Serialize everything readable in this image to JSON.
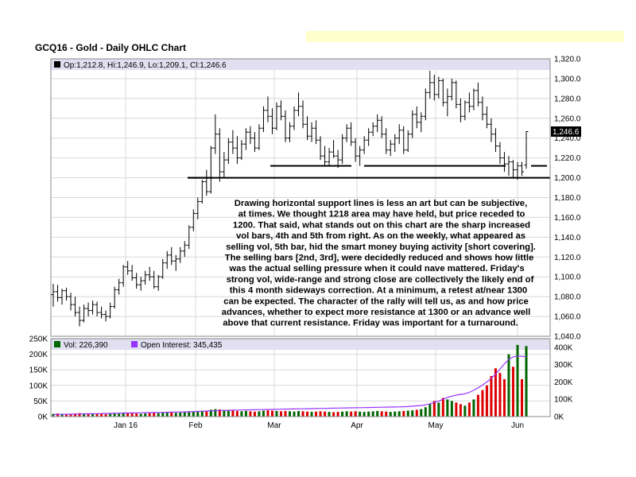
{
  "title": "GCQ16 - Gold - Daily OHLC Chart",
  "price_panel": {
    "legend": "Op:1,212.8, Hi:1,246.9, Lo:1,209.1, Cl:1,246.6",
    "last_price": "1,246.6",
    "y_ticks": [
      "1,320.0",
      "1,300.0",
      "1,280.0",
      "1,260.0",
      "1,240.0",
      "1,220.0",
      "1,200.0",
      "1,180.0",
      "1,160.0",
      "1,140.0",
      "1,120.0",
      "1,100.0",
      "1,080.0",
      "1,060.0",
      "1,040.0"
    ]
  },
  "volume_panel": {
    "vol_legend": "Vol: 226,390",
    "oi_legend": "Open Interest: 345,435",
    "left_ticks": [
      "250K",
      "200K",
      "150K",
      "100K",
      "50K",
      "0K"
    ],
    "right_ticks": [
      "400K",
      "300K",
      "200K",
      "100K",
      "0K"
    ]
  },
  "x_ticks": [
    "Jan 16",
    "Feb",
    "Mar",
    "Apr",
    "May",
    "Jun"
  ],
  "annotation_lines": [
    "Drawing horizontal support lines is less an art but can be subjective,",
    "at times.  We thought 1218 area may have held, but price receded to",
    "1200.  That said, what stands out on this chart are the sharp increased",
    "vol bars, 4th and 5th from right.  As on the weekly, what appeared as",
    "selling vol, 5th bar, hid the smart money buying activity [short covering].",
    "The selling bars [2nd, 3rd], were decidedly reduced and shows how little",
    "was the actual selling pressure when it could nave mattered.  Friday's",
    "strong vol, wide-range and strong close are collectively the likely end of",
    "this 4 month sideways correction.  At a minimum, a retest at/near 1300",
    "can be expected.  The character of the rally will tell us, as and how price",
    "advances, whether to expect more resistance at 1300 or an advance well",
    "above that current resistance.  Friday was important for a turnaround."
  ],
  "colors": {
    "up_volume": "#006600",
    "down_volume": "#dd0000",
    "open_interest": "#9933ff",
    "legend_bg": "#e0e0f0",
    "highlight": "#ffffcc"
  },
  "chart_data": {
    "type": "ohlc",
    "price_ylim": [
      1040,
      1320
    ],
    "volume_ylim": [
      0,
      250000
    ],
    "open_interest_ylim": [
      0,
      450000
    ],
    "support_lines": [
      {
        "level": 1212,
        "from": "Mar",
        "to": "Apr"
      },
      {
        "level": 1212,
        "from": "Apr",
        "to": "Jun"
      },
      {
        "level": 1200,
        "from": "Feb",
        "to": "Jun"
      }
    ],
    "bars": [
      {
        "o": 1082,
        "h": 1093,
        "l": 1070,
        "c": 1085,
        "v": 9000,
        "oi": 12000
      },
      {
        "o": 1085,
        "h": 1092,
        "l": 1075,
        "c": 1079,
        "v": 10000,
        "oi": 12500
      },
      {
        "o": 1079,
        "h": 1088,
        "l": 1072,
        "c": 1086,
        "v": 9000,
        "oi": 13000
      },
      {
        "o": 1086,
        "h": 1089,
        "l": 1076,
        "c": 1080,
        "v": 8000,
        "oi": 13500
      },
      {
        "o": 1080,
        "h": 1084,
        "l": 1066,
        "c": 1072,
        "v": 9000,
        "oi": 14000
      },
      {
        "o": 1072,
        "h": 1080,
        "l": 1060,
        "c": 1064,
        "v": 10000,
        "oi": 14500
      },
      {
        "o": 1064,
        "h": 1070,
        "l": 1050,
        "c": 1056,
        "v": 11000,
        "oi": 15000
      },
      {
        "o": 1056,
        "h": 1072,
        "l": 1054,
        "c": 1068,
        "v": 9000,
        "oi": 15500
      },
      {
        "o": 1068,
        "h": 1074,
        "l": 1060,
        "c": 1066,
        "v": 8000,
        "oi": 16000
      },
      {
        "o": 1066,
        "h": 1076,
        "l": 1062,
        "c": 1072,
        "v": 9000,
        "oi": 16500
      },
      {
        "o": 1072,
        "h": 1075,
        "l": 1060,
        "c": 1064,
        "v": 10000,
        "oi": 17000
      },
      {
        "o": 1064,
        "h": 1070,
        "l": 1058,
        "c": 1062,
        "v": 9000,
        "oi": 17500
      },
      {
        "o": 1062,
        "h": 1066,
        "l": 1055,
        "c": 1060,
        "v": 8000,
        "oi": 18000
      },
      {
        "o": 1060,
        "h": 1074,
        "l": 1058,
        "c": 1070,
        "v": 10000,
        "oi": 18500
      },
      {
        "o": 1070,
        "h": 1090,
        "l": 1068,
        "c": 1087,
        "v": 12000,
        "oi": 19000
      },
      {
        "o": 1087,
        "h": 1098,
        "l": 1082,
        "c": 1094,
        "v": 11000,
        "oi": 19500
      },
      {
        "o": 1094,
        "h": 1112,
        "l": 1090,
        "c": 1110,
        "v": 13000,
        "oi": 20000
      },
      {
        "o": 1110,
        "h": 1116,
        "l": 1102,
        "c": 1106,
        "v": 12000,
        "oi": 20500
      },
      {
        "o": 1106,
        "h": 1112,
        "l": 1096,
        "c": 1099,
        "v": 11000,
        "oi": 21000
      },
      {
        "o": 1099,
        "h": 1104,
        "l": 1088,
        "c": 1092,
        "v": 10000,
        "oi": 21500
      },
      {
        "o": 1092,
        "h": 1100,
        "l": 1086,
        "c": 1096,
        "v": 9000,
        "oi": 22000
      },
      {
        "o": 1096,
        "h": 1106,
        "l": 1092,
        "c": 1102,
        "v": 10000,
        "oi": 22500
      },
      {
        "o": 1102,
        "h": 1110,
        "l": 1096,
        "c": 1100,
        "v": 11000,
        "oi": 23000
      },
      {
        "o": 1100,
        "h": 1106,
        "l": 1088,
        "c": 1090,
        "v": 12000,
        "oi": 23500
      },
      {
        "o": 1090,
        "h": 1102,
        "l": 1086,
        "c": 1100,
        "v": 11000,
        "oi": 24000
      },
      {
        "o": 1100,
        "h": 1118,
        "l": 1098,
        "c": 1114,
        "v": 13000,
        "oi": 24500
      },
      {
        "o": 1114,
        "h": 1126,
        "l": 1108,
        "c": 1122,
        "v": 14000,
        "oi": 25000
      },
      {
        "o": 1122,
        "h": 1130,
        "l": 1112,
        "c": 1116,
        "v": 13000,
        "oi": 25500
      },
      {
        "o": 1116,
        "h": 1122,
        "l": 1106,
        "c": 1118,
        "v": 12000,
        "oi": 26000
      },
      {
        "o": 1118,
        "h": 1130,
        "l": 1114,
        "c": 1126,
        "v": 13000,
        "oi": 26500
      },
      {
        "o": 1126,
        "h": 1136,
        "l": 1120,
        "c": 1132,
        "v": 14000,
        "oi": 27000
      },
      {
        "o": 1132,
        "h": 1152,
        "l": 1128,
        "c": 1150,
        "v": 15000,
        "oi": 28000
      },
      {
        "o": 1150,
        "h": 1168,
        "l": 1146,
        "c": 1164,
        "v": 16000,
        "oi": 29000
      },
      {
        "o": 1164,
        "h": 1180,
        "l": 1158,
        "c": 1176,
        "v": 17000,
        "oi": 30000
      },
      {
        "o": 1176,
        "h": 1198,
        "l": 1174,
        "c": 1196,
        "v": 18000,
        "oi": 31000
      },
      {
        "o": 1196,
        "h": 1208,
        "l": 1182,
        "c": 1186,
        "v": 19000,
        "oi": 32000
      },
      {
        "o": 1186,
        "h": 1232,
        "l": 1184,
        "c": 1230,
        "v": 22000,
        "oi": 33000
      },
      {
        "o": 1230,
        "h": 1264,
        "l": 1224,
        "c": 1244,
        "v": 24000,
        "oi": 34000
      },
      {
        "o": 1244,
        "h": 1250,
        "l": 1196,
        "c": 1206,
        "v": 23000,
        "oi": 35000
      },
      {
        "o": 1206,
        "h": 1226,
        "l": 1200,
        "c": 1218,
        "v": 21000,
        "oi": 36000
      },
      {
        "o": 1218,
        "h": 1240,
        "l": 1214,
        "c": 1236,
        "v": 20000,
        "oi": 36500
      },
      {
        "o": 1236,
        "h": 1248,
        "l": 1224,
        "c": 1230,
        "v": 19000,
        "oi": 37000
      },
      {
        "o": 1230,
        "h": 1242,
        "l": 1214,
        "c": 1220,
        "v": 18000,
        "oi": 37500
      },
      {
        "o": 1220,
        "h": 1238,
        "l": 1218,
        "c": 1234,
        "v": 17000,
        "oi": 38000
      },
      {
        "o": 1234,
        "h": 1250,
        "l": 1228,
        "c": 1246,
        "v": 18000,
        "oi": 38500
      },
      {
        "o": 1246,
        "h": 1252,
        "l": 1234,
        "c": 1240,
        "v": 17000,
        "oi": 39000
      },
      {
        "o": 1240,
        "h": 1246,
        "l": 1226,
        "c": 1230,
        "v": 16000,
        "oi": 39500
      },
      {
        "o": 1230,
        "h": 1254,
        "l": 1228,
        "c": 1250,
        "v": 17000,
        "oi": 40000
      },
      {
        "o": 1250,
        "h": 1272,
        "l": 1246,
        "c": 1268,
        "v": 19000,
        "oi": 40500
      },
      {
        "o": 1268,
        "h": 1282,
        "l": 1256,
        "c": 1262,
        "v": 20000,
        "oi": 41000
      },
      {
        "o": 1262,
        "h": 1270,
        "l": 1244,
        "c": 1250,
        "v": 19000,
        "oi": 41500
      },
      {
        "o": 1250,
        "h": 1276,
        "l": 1248,
        "c": 1272,
        "v": 18000,
        "oi": 42000
      },
      {
        "o": 1272,
        "h": 1278,
        "l": 1258,
        "c": 1262,
        "v": 17000,
        "oi": 42500
      },
      {
        "o": 1262,
        "h": 1268,
        "l": 1236,
        "c": 1240,
        "v": 18000,
        "oi": 43000
      },
      {
        "o": 1240,
        "h": 1256,
        "l": 1236,
        "c": 1252,
        "v": 17000,
        "oi": 43500
      },
      {
        "o": 1252,
        "h": 1272,
        "l": 1248,
        "c": 1268,
        "v": 16000,
        "oi": 44000
      },
      {
        "o": 1268,
        "h": 1286,
        "l": 1262,
        "c": 1272,
        "v": 18000,
        "oi": 44500
      },
      {
        "o": 1272,
        "h": 1278,
        "l": 1250,
        "c": 1254,
        "v": 17000,
        "oi": 45000
      },
      {
        "o": 1254,
        "h": 1262,
        "l": 1238,
        "c": 1242,
        "v": 16000,
        "oi": 45500
      },
      {
        "o": 1242,
        "h": 1256,
        "l": 1236,
        "c": 1250,
        "v": 15000,
        "oi": 46000
      },
      {
        "o": 1250,
        "h": 1258,
        "l": 1234,
        "c": 1238,
        "v": 16000,
        "oi": 46500
      },
      {
        "o": 1238,
        "h": 1242,
        "l": 1218,
        "c": 1222,
        "v": 17000,
        "oi": 47000
      },
      {
        "o": 1222,
        "h": 1232,
        "l": 1212,
        "c": 1216,
        "v": 16000,
        "oi": 47500
      },
      {
        "o": 1216,
        "h": 1230,
        "l": 1212,
        "c": 1226,
        "v": 15000,
        "oi": 48000
      },
      {
        "o": 1226,
        "h": 1238,
        "l": 1220,
        "c": 1222,
        "v": 14000,
        "oi": 48500
      },
      {
        "o": 1222,
        "h": 1228,
        "l": 1210,
        "c": 1218,
        "v": 15000,
        "oi": 49000
      },
      {
        "o": 1218,
        "h": 1244,
        "l": 1214,
        "c": 1240,
        "v": 16000,
        "oi": 49500
      },
      {
        "o": 1240,
        "h": 1254,
        "l": 1236,
        "c": 1250,
        "v": 17000,
        "oi": 50000
      },
      {
        "o": 1250,
        "h": 1256,
        "l": 1232,
        "c": 1236,
        "v": 16000,
        "oi": 50500
      },
      {
        "o": 1236,
        "h": 1240,
        "l": 1216,
        "c": 1222,
        "v": 17000,
        "oi": 51000
      },
      {
        "o": 1222,
        "h": 1232,
        "l": 1212,
        "c": 1228,
        "v": 16000,
        "oi": 51500
      },
      {
        "o": 1228,
        "h": 1242,
        "l": 1224,
        "c": 1238,
        "v": 15000,
        "oi": 52000
      },
      {
        "o": 1238,
        "h": 1250,
        "l": 1232,
        "c": 1246,
        "v": 16000,
        "oi": 52500
      },
      {
        "o": 1246,
        "h": 1256,
        "l": 1242,
        "c": 1252,
        "v": 17000,
        "oi": 53000
      },
      {
        "o": 1252,
        "h": 1264,
        "l": 1246,
        "c": 1258,
        "v": 18000,
        "oi": 53500
      },
      {
        "o": 1258,
        "h": 1262,
        "l": 1240,
        "c": 1244,
        "v": 17000,
        "oi": 54000
      },
      {
        "o": 1244,
        "h": 1250,
        "l": 1224,
        "c": 1228,
        "v": 16000,
        "oi": 54500
      },
      {
        "o": 1228,
        "h": 1238,
        "l": 1222,
        "c": 1234,
        "v": 15000,
        "oi": 55000
      },
      {
        "o": 1234,
        "h": 1244,
        "l": 1226,
        "c": 1240,
        "v": 16000,
        "oi": 55500
      },
      {
        "o": 1240,
        "h": 1254,
        "l": 1234,
        "c": 1248,
        "v": 17000,
        "oi": 56000
      },
      {
        "o": 1248,
        "h": 1252,
        "l": 1224,
        "c": 1228,
        "v": 18000,
        "oi": 57000
      },
      {
        "o": 1228,
        "h": 1248,
        "l": 1226,
        "c": 1244,
        "v": 19000,
        "oi": 58000
      },
      {
        "o": 1244,
        "h": 1268,
        "l": 1240,
        "c": 1264,
        "v": 20000,
        "oi": 60000
      },
      {
        "o": 1264,
        "h": 1272,
        "l": 1250,
        "c": 1256,
        "v": 22000,
        "oi": 62000
      },
      {
        "o": 1256,
        "h": 1266,
        "l": 1246,
        "c": 1262,
        "v": 24000,
        "oi": 64000
      },
      {
        "o": 1262,
        "h": 1290,
        "l": 1258,
        "c": 1286,
        "v": 30000,
        "oi": 68000
      },
      {
        "o": 1286,
        "h": 1308,
        "l": 1280,
        "c": 1296,
        "v": 40000,
        "oi": 74000
      },
      {
        "o": 1296,
        "h": 1304,
        "l": 1278,
        "c": 1284,
        "v": 50000,
        "oi": 82000
      },
      {
        "o": 1284,
        "h": 1302,
        "l": 1280,
        "c": 1298,
        "v": 45000,
        "oi": 90000
      },
      {
        "o": 1298,
        "h": 1300,
        "l": 1272,
        "c": 1276,
        "v": 60000,
        "oi": 100000
      },
      {
        "o": 1276,
        "h": 1290,
        "l": 1262,
        "c": 1282,
        "v": 55000,
        "oi": 110000
      },
      {
        "o": 1282,
        "h": 1300,
        "l": 1278,
        "c": 1296,
        "v": 50000,
        "oi": 118000
      },
      {
        "o": 1296,
        "h": 1298,
        "l": 1270,
        "c": 1274,
        "v": 45000,
        "oi": 124000
      },
      {
        "o": 1274,
        "h": 1280,
        "l": 1256,
        "c": 1262,
        "v": 40000,
        "oi": 128000
      },
      {
        "o": 1262,
        "h": 1278,
        "l": 1258,
        "c": 1276,
        "v": 35000,
        "oi": 132000
      },
      {
        "o": 1276,
        "h": 1286,
        "l": 1266,
        "c": 1272,
        "v": 45000,
        "oi": 140000
      },
      {
        "o": 1272,
        "h": 1290,
        "l": 1268,
        "c": 1288,
        "v": 55000,
        "oi": 152000
      },
      {
        "o": 1288,
        "h": 1296,
        "l": 1272,
        "c": 1276,
        "v": 70000,
        "oi": 166000
      },
      {
        "o": 1276,
        "h": 1282,
        "l": 1258,
        "c": 1264,
        "v": 85000,
        "oi": 182000
      },
      {
        "o": 1264,
        "h": 1272,
        "l": 1250,
        "c": 1254,
        "v": 100000,
        "oi": 200000
      },
      {
        "o": 1254,
        "h": 1260,
        "l": 1236,
        "c": 1244,
        "v": 130000,
        "oi": 220000
      },
      {
        "o": 1244,
        "h": 1250,
        "l": 1226,
        "c": 1232,
        "v": 155000,
        "oi": 245000
      },
      {
        "o": 1232,
        "h": 1236,
        "l": 1214,
        "c": 1220,
        "v": 140000,
        "oi": 275000
      },
      {
        "o": 1220,
        "h": 1226,
        "l": 1206,
        "c": 1214,
        "v": 120000,
        "oi": 305000
      },
      {
        "o": 1214,
        "h": 1222,
        "l": 1202,
        "c": 1216,
        "v": 200000,
        "oi": 330000
      },
      {
        "o": 1216,
        "h": 1218,
        "l": 1200,
        "c": 1208,
        "v": 160000,
        "oi": 345000
      },
      {
        "o": 1208,
        "h": 1216,
        "l": 1198,
        "c": 1212,
        "v": 230000,
        "oi": 350000
      },
      {
        "o": 1212,
        "h": 1216,
        "l": 1202,
        "c": 1206,
        "v": 120000,
        "oi": 348000
      },
      {
        "o": 1212.8,
        "h": 1246.9,
        "l": 1209.1,
        "c": 1246.6,
        "v": 226390,
        "oi": 345435
      }
    ]
  }
}
